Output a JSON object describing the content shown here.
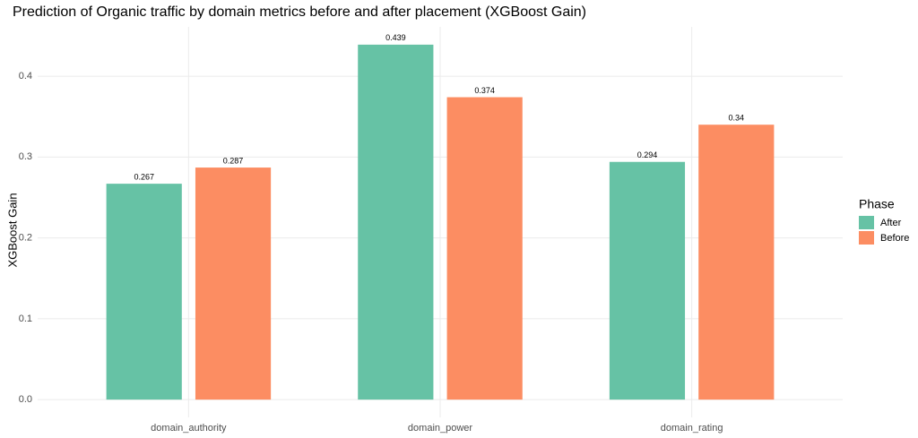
{
  "chart_data": {
    "type": "bar",
    "title": "Prediction of Organic traffic by domain metrics before and after placement (XGBoost Gain)",
    "y_label": "XGBoost Gain",
    "categories": [
      "domain_authority",
      "domain_power",
      "domain_rating"
    ],
    "series": [
      {
        "name": "After",
        "color": "#66c2a5",
        "values": [
          0.267,
          0.439,
          0.294
        ]
      },
      {
        "name": "Before",
        "color": "#fc8d62",
        "values": [
          0.287,
          0.374,
          0.34
        ]
      }
    ],
    "ylim": [
      -0.022,
      0.461
    ],
    "yticks": [
      {
        "value": 0,
        "label": "0.0"
      },
      0.1,
      0.2,
      0.3,
      0.4
    ],
    "grid": true,
    "legend_title": "Phase",
    "legend_position": "right"
  }
}
